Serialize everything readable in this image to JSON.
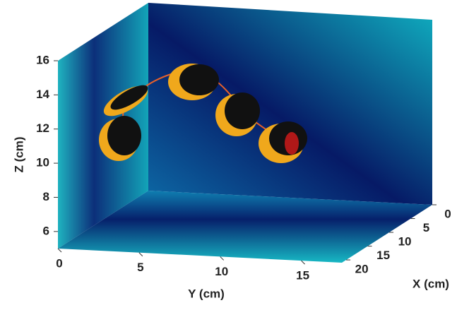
{
  "chart_data": {
    "type": "3d",
    "xlabel": "X (cm)",
    "ylabel": "Y (cm)",
    "zlabel": "Z (cm)",
    "xlim": [
      0,
      21
    ],
    "ylim": [
      0,
      17.5
    ],
    "zlim": [
      5,
      16
    ],
    "xticks": [
      0,
      5,
      10,
      15,
      20
    ],
    "yticks": [
      0,
      5,
      10,
      15
    ],
    "zticks": [
      6,
      8,
      10,
      12,
      14,
      16
    ]
  }
}
